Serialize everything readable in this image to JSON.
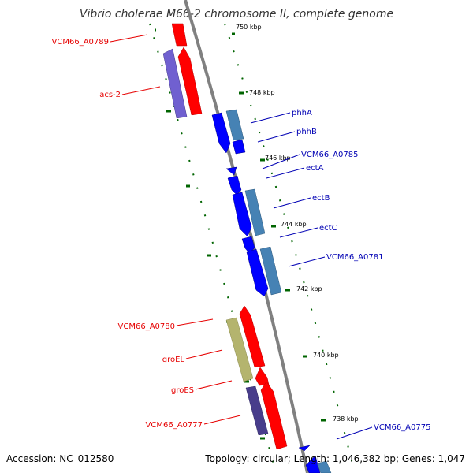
{
  "title": "Vibrio cholerae M66-2 chromosome II, complete genome",
  "accession": "Accession: NC_012580",
  "summary": "Topology: circular; Length: 1,046,382 bp; Genes: 1,047",
  "colors": {
    "forward": "#ff0000",
    "reverse": "#0000ff",
    "backbone": "#808080",
    "cds_blue_light": "#4682b4",
    "cds_purple": "#7060d0",
    "cds_olive": "#b4b46e",
    "cds_dark_purple": "#483d8b",
    "tick_marks": "#006400",
    "label_red": "#e60000",
    "label_blue": "#0000b4"
  },
  "ticks": [
    "750 kbp",
    "748 kbp",
    "746 kbp",
    "744 kbp",
    "742 kbp",
    "740 kbp",
    "738 kbp"
  ],
  "labels": {
    "left": [
      "VCM66_A0789",
      "acs-2",
      "VCM66_A0780",
      "groEL",
      "groES",
      "VCM66_A0777"
    ],
    "right": [
      "phhA",
      "phhB",
      "VCM66_A0785",
      "ectA",
      "ectB",
      "ectC",
      "VCM66_A0781",
      "VCM66_A0775"
    ]
  }
}
